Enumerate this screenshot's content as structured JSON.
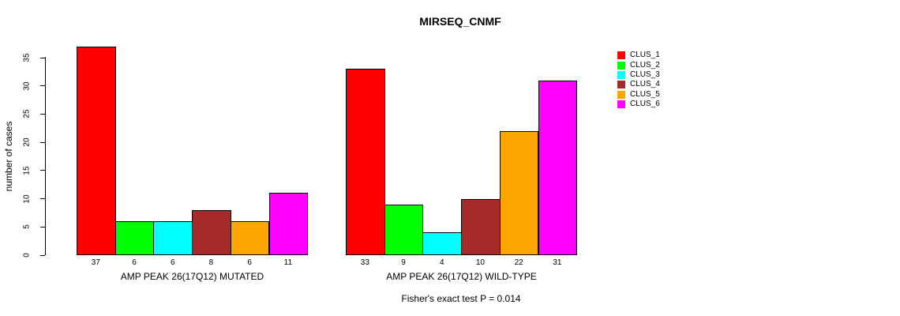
{
  "chart_data": {
    "type": "bar",
    "title": "MIRSEQ_CNMF",
    "ylabel": "number of cases",
    "yticks": [
      0,
      5,
      10,
      15,
      20,
      25,
      30,
      35
    ],
    "ylim": [
      0,
      37
    ],
    "grid": false,
    "legend_position": "top-right",
    "categories": [
      "CLUS_1",
      "CLUS_2",
      "CLUS_3",
      "CLUS_4",
      "CLUS_5",
      "CLUS_6"
    ],
    "colors": [
      "#FF0000",
      "#00FF00",
      "#00FFFF",
      "#A52A2A",
      "#FFA500",
      "#FF00FF"
    ],
    "groups": [
      {
        "xlabel": "AMP PEAK 26(17Q12) MUTATED",
        "values": [
          37,
          6,
          6,
          8,
          6,
          11
        ]
      },
      {
        "xlabel": "AMP PEAK 26(17Q12) WILD-TYPE",
        "values": [
          33,
          9,
          4,
          10,
          22,
          31
        ]
      }
    ],
    "annotation": "Fisher's exact test P = 0.014"
  }
}
